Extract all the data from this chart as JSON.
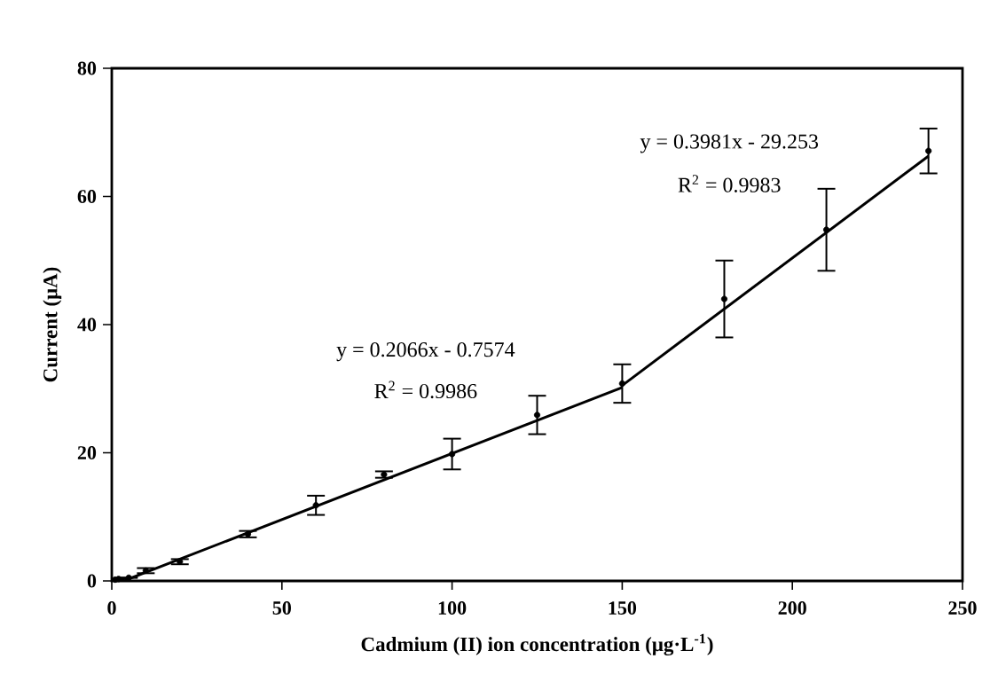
{
  "chart_data": {
    "type": "scatter",
    "xlabel": "Cadmium (II) ion concentration (μg·L$^{-1}$)",
    "ylabel": "Current  (μA)",
    "xlim": [
      0,
      250
    ],
    "ylim": [
      0,
      80
    ],
    "xticks": [
      0,
      50,
      100,
      150,
      200,
      250
    ],
    "yticks": [
      0,
      20,
      40,
      60,
      80
    ],
    "grid": false,
    "series": [
      {
        "marker": "circle",
        "color": "#000000",
        "x": [
          1,
          2,
          5,
          10,
          20,
          40,
          60,
          80,
          100,
          125,
          150,
          180,
          210,
          240
        ],
        "values": [
          0.2,
          0.3,
          0.5,
          1.6,
          3.0,
          7.3,
          11.8,
          16.6,
          19.8,
          25.9,
          30.8,
          44.0,
          54.8,
          67.1
        ],
        "errors": [
          null,
          null,
          null,
          0.4,
          0.4,
          0.5,
          1.5,
          0.5,
          2.4,
          3.0,
          3.0,
          6.0,
          6.4,
          3.5
        ]
      },
      {
        "type": "line",
        "marker": "none",
        "line_style": "solid",
        "color": "#000000",
        "x": [
          4,
          150
        ],
        "values": [
          0.1,
          30.2
        ]
      },
      {
        "type": "line",
        "marker": "none",
        "line_style": "solid",
        "color": "#000000",
        "x": [
          150,
          240
        ],
        "values": [
          30.5,
          66.3
        ]
      }
    ],
    "annotations": [
      "y = 0.2066x - 0.7574",
      "R$^{2}$ = 0.9986",
      "y = 0.3981x - 29.253",
      "R$^{2}$ = 0.9983"
    ]
  }
}
